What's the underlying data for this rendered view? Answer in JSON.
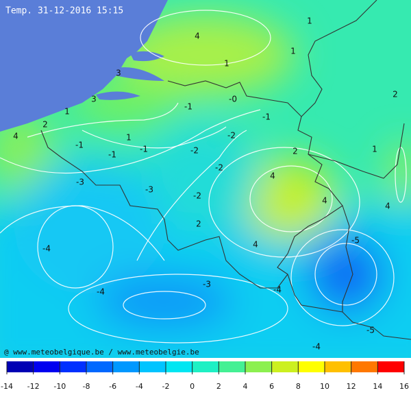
{
  "title": "Temp. 31-12-2016 15:15",
  "credit": "@ www.meteobelgique.be / www.meteobelgie.be",
  "contour_labels": [
    "4",
    "1",
    "1",
    "1",
    "3",
    "3",
    "1",
    "2",
    "4",
    "-1",
    "-0",
    "-1",
    "2",
    "1",
    "-1",
    "-1",
    "-1",
    "-2",
    "-2",
    "2",
    "1",
    "-2",
    "4",
    "-3",
    "-3",
    "-2",
    "4",
    "4",
    "2",
    "4",
    "-5",
    "-4",
    "-3",
    "-4",
    "-4",
    "-5",
    "-4"
  ],
  "colorbar": {
    "ticks": [
      -14,
      -12,
      -10,
      -8,
      -6,
      -4,
      -2,
      0,
      2,
      4,
      6,
      8,
      10,
      12,
      14,
      16
    ],
    "colors": [
      "#0000b4",
      "#0000f0",
      "#0030ff",
      "#0068ff",
      "#0098ff",
      "#00c4ff",
      "#00e6f2",
      "#1ef0c4",
      "#44f094",
      "#8cf050",
      "#ccf020",
      "#ffff00",
      "#ffc000",
      "#ff7800",
      "#ff0000"
    ]
  }
}
